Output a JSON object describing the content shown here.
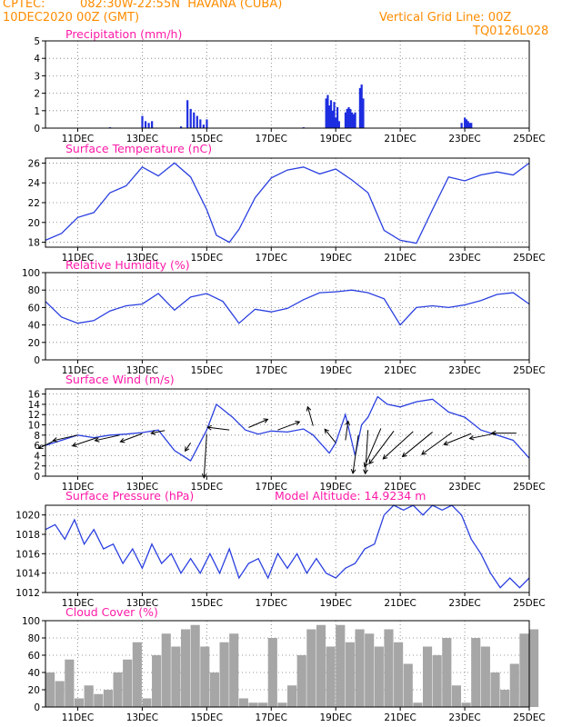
{
  "header": {
    "source": "CPTEC:",
    "location": "082:30W-22:55N  HAVANA (CUBA)",
    "start": "10DEC2020 00Z (GMT)",
    "grid_note": "Vertical Grid Line: 00Z",
    "code": "TQ0126L028"
  },
  "colors": {
    "header": "#ff8c00",
    "title": "#ff1aa8",
    "line": "#2a3fe0",
    "bar": "#1d2de0",
    "cloud": "#a6a6a6",
    "axis": "#000000",
    "grid": "#777777"
  },
  "x_axis": {
    "unit": "day",
    "range": [
      10,
      25
    ],
    "ticks": [
      11,
      13,
      15,
      17,
      19,
      21,
      23,
      25
    ],
    "tick_labels": [
      "11DEC",
      "13DEC",
      "15DEC",
      "17DEC",
      "19DEC",
      "21DEC",
      "23DEC",
      "25DEC"
    ]
  },
  "chart_data": [
    {
      "type": "bar",
      "title": "Precipitation (mm/h)",
      "ylim": [
        0,
        5
      ],
      "yticks": [
        0,
        1,
        2,
        3,
        4,
        5
      ],
      "x": [
        12.0,
        13.0,
        13.1,
        13.2,
        13.3,
        14.2,
        14.4,
        14.5,
        14.6,
        14.7,
        14.8,
        14.9,
        15.0,
        18.0,
        18.7,
        18.75,
        18.8,
        18.85,
        18.9,
        18.95,
        19.0,
        19.05,
        19.1,
        19.3,
        19.35,
        19.4,
        19.45,
        19.5,
        19.55,
        19.6,
        19.75,
        19.8,
        19.85,
        22.9,
        23.0,
        23.05,
        23.1,
        23.15,
        23.2
      ],
      "values": [
        0.05,
        0.7,
        0.4,
        0.3,
        0.4,
        0.1,
        1.6,
        1.1,
        0.9,
        0.7,
        0.5,
        0.2,
        0.5,
        0.05,
        1.7,
        1.9,
        1.3,
        1.6,
        1.0,
        1.5,
        0.6,
        1.2,
        0.4,
        0.9,
        1.1,
        1.2,
        1.1,
        0.9,
        0.8,
        0.9,
        2.3,
        2.5,
        1.7,
        0.3,
        0.6,
        0.5,
        0.4,
        0.3,
        0.3
      ]
    },
    {
      "type": "line",
      "title": "Surface Temperature (nC)",
      "ylim": [
        17.5,
        26.5
      ],
      "yticks": [
        18,
        20,
        22,
        24,
        26
      ],
      "x": [
        10.0,
        10.5,
        11.0,
        11.5,
        12.0,
        12.5,
        13.0,
        13.5,
        14.0,
        14.5,
        15.0,
        15.3,
        15.7,
        16.0,
        16.5,
        17.0,
        17.5,
        18.0,
        18.5,
        19.0,
        19.5,
        20.0,
        20.5,
        21.0,
        21.5,
        22.0,
        22.5,
        23.0,
        23.5,
        24.0,
        24.5,
        25.0
      ],
      "values": [
        18.2,
        18.9,
        20.5,
        21.0,
        23.0,
        23.7,
        25.6,
        24.7,
        26.0,
        24.6,
        21.3,
        18.7,
        18.0,
        19.3,
        22.5,
        24.5,
        25.3,
        25.6,
        24.9,
        25.4,
        24.3,
        23.0,
        19.2,
        18.2,
        17.9,
        21.3,
        24.6,
        24.2,
        24.8,
        25.1,
        24.8,
        26.0
      ]
    },
    {
      "type": "line",
      "title": "Relative Humidity (%)",
      "ylim": [
        0,
        100
      ],
      "yticks": [
        0,
        20,
        40,
        60,
        80,
        100
      ],
      "x": [
        10.0,
        10.5,
        11.0,
        11.5,
        12.0,
        12.5,
        13.0,
        13.5,
        14.0,
        14.5,
        15.0,
        15.5,
        16.0,
        16.5,
        17.0,
        17.5,
        18.0,
        18.5,
        19.0,
        19.5,
        20.0,
        20.5,
        21.0,
        21.5,
        22.0,
        22.5,
        23.0,
        23.5,
        24.0,
        24.5,
        25.0
      ],
      "values": [
        67.0,
        49.0,
        42.0,
        45.0,
        56.0,
        62.0,
        64.0,
        76.0,
        57.0,
        72.0,
        76.0,
        67.0,
        42.0,
        58.0,
        55.0,
        59.0,
        69.0,
        77.0,
        78.0,
        80.0,
        77.0,
        70.0,
        40.0,
        60.0,
        62.0,
        60.0,
        63.0,
        68.0,
        75.0,
        77.0,
        64.0
      ]
    },
    {
      "type": "line",
      "title": "Surface Wind (m/s)",
      "ylim": [
        0,
        17
      ],
      "yticks": [
        0,
        2,
        4,
        6,
        8,
        10,
        12,
        14,
        16
      ],
      "x": [
        10.0,
        10.5,
        11.0,
        11.5,
        12.0,
        12.5,
        13.0,
        13.5,
        14.0,
        14.5,
        15.0,
        15.3,
        15.8,
        16.2,
        16.6,
        17.0,
        17.5,
        18.0,
        18.3,
        18.8,
        19.0,
        19.3,
        19.6,
        19.8,
        20.0,
        20.3,
        20.6,
        21.0,
        21.5,
        22.0,
        22.5,
        23.0,
        23.5,
        24.0,
        24.5,
        25.0
      ],
      "values": [
        6.0,
        7.0,
        8.0,
        7.5,
        8.0,
        8.2,
        8.5,
        9.0,
        5.0,
        3.0,
        9.0,
        14.0,
        11.5,
        9.0,
        8.2,
        8.8,
        8.6,
        9.2,
        8.0,
        4.5,
        6.5,
        12.0,
        4.0,
        10.0,
        11.5,
        15.5,
        14.0,
        13.5,
        14.5,
        15.0,
        12.5,
        11.5,
        9.0,
        8.0,
        7.0,
        3.5
      ],
      "arrows": [
        {
          "x": 10.3,
          "y": 7.0,
          "u": -0.6,
          "v": -0.3
        },
        {
          "x": 11.0,
          "y": 8.0,
          "u": -0.9,
          "v": -0.2
        },
        {
          "x": 11.6,
          "y": 7.5,
          "u": -0.9,
          "v": -0.3
        },
        {
          "x": 12.3,
          "y": 8.0,
          "u": -0.9,
          "v": -0.2
        },
        {
          "x": 13.0,
          "y": 8.3,
          "u": -0.8,
          "v": -0.3
        },
        {
          "x": 13.7,
          "y": 8.9,
          "u": -0.5,
          "v": -0.1
        },
        {
          "x": 14.5,
          "y": 6.5,
          "u": -0.2,
          "v": -0.3
        },
        {
          "x": 15.0,
          "y": 8.2,
          "u": -0.1,
          "v": -1.6
        },
        {
          "x": 15.7,
          "y": 9.0,
          "u": -0.8,
          "v": 0.1
        },
        {
          "x": 16.3,
          "y": 9.5,
          "u": 0.7,
          "v": 0.3
        },
        {
          "x": 17.2,
          "y": 9.0,
          "u": 0.8,
          "v": 0.3
        },
        {
          "x": 18.3,
          "y": 9.8,
          "u": -0.2,
          "v": 0.7
        },
        {
          "x": 19.0,
          "y": 6.5,
          "u": -0.4,
          "v": 0.5
        },
        {
          "x": 19.3,
          "y": 7.0,
          "u": 0.1,
          "v": 0.7
        },
        {
          "x": 19.7,
          "y": 8.0,
          "u": -0.2,
          "v": -1.4
        },
        {
          "x": 20.0,
          "y": 9.0,
          "u": -0.1,
          "v": -1.6
        },
        {
          "x": 20.4,
          "y": 9.3,
          "u": -0.6,
          "v": -1.4
        },
        {
          "x": 20.8,
          "y": 8.8,
          "u": -0.9,
          "v": -1.2
        },
        {
          "x": 21.4,
          "y": 8.7,
          "u": -1.1,
          "v": -1.0
        },
        {
          "x": 22.0,
          "y": 8.6,
          "u": -1.1,
          "v": -0.9
        },
        {
          "x": 22.6,
          "y": 8.5,
          "u": -1.1,
          "v": -0.8
        },
        {
          "x": 23.2,
          "y": 8.3,
          "u": -1.0,
          "v": -0.4
        },
        {
          "x": 24.0,
          "y": 8.4,
          "u": -1.0,
          "v": -0.2
        },
        {
          "x": 24.6,
          "y": 8.4,
          "u": -0.9,
          "v": 0.0
        }
      ]
    },
    {
      "type": "line",
      "title": "Surface Pressure (hPa)",
      "note": "Model Altitude: 14.9234 m",
      "ylim": [
        1012,
        1021
      ],
      "yticks": [
        1012,
        1014,
        1016,
        1018,
        1020
      ],
      "x": [
        10.0,
        10.3,
        10.6,
        10.9,
        11.2,
        11.5,
        11.8,
        12.1,
        12.4,
        12.7,
        13.0,
        13.3,
        13.6,
        13.9,
        14.2,
        14.5,
        14.8,
        15.1,
        15.4,
        15.7,
        16.0,
        16.3,
        16.6,
        16.9,
        17.2,
        17.5,
        17.8,
        18.1,
        18.4,
        18.7,
        19.0,
        19.3,
        19.6,
        19.9,
        20.2,
        20.5,
        20.8,
        21.1,
        21.4,
        21.7,
        22.0,
        22.3,
        22.6,
        22.9,
        23.2,
        23.5,
        23.8,
        24.1,
        24.4,
        24.7,
        25.0
      ],
      "values": [
        1018.5,
        1019.0,
        1017.5,
        1019.5,
        1017.0,
        1018.5,
        1016.5,
        1017.0,
        1015.0,
        1016.5,
        1014.5,
        1017.0,
        1015.0,
        1016.0,
        1014.0,
        1015.5,
        1014.0,
        1016.0,
        1014.0,
        1016.5,
        1013.5,
        1015.0,
        1015.5,
        1013.5,
        1016.0,
        1014.5,
        1016.0,
        1014.0,
        1015.5,
        1014.0,
        1013.5,
        1014.5,
        1015.0,
        1016.5,
        1017.0,
        1020.0,
        1021.0,
        1020.5,
        1021.0,
        1020.0,
        1021.0,
        1020.5,
        1021.0,
        1020.0,
        1017.5,
        1016.0,
        1014.0,
        1012.5,
        1013.5,
        1012.5,
        1013.5
      ]
    },
    {
      "type": "area",
      "title": "Cloud Cover (%)",
      "ylim": [
        0,
        100
      ],
      "yticks": [
        0,
        20,
        40,
        60,
        80,
        100
      ],
      "x": [
        10.0,
        10.3,
        10.6,
        10.9,
        11.2,
        11.5,
        11.8,
        12.1,
        12.4,
        12.7,
        13.0,
        13.3,
        13.6,
        13.9,
        14.2,
        14.5,
        14.8,
        15.1,
        15.4,
        15.7,
        16.0,
        16.3,
        16.6,
        16.9,
        17.2,
        17.5,
        17.8,
        18.1,
        18.4,
        18.7,
        19.0,
        19.3,
        19.6,
        19.9,
        20.2,
        20.5,
        20.8,
        21.1,
        21.4,
        21.7,
        22.0,
        22.3,
        22.6,
        22.9,
        23.2,
        23.5,
        23.8,
        24.1,
        24.4,
        24.7,
        25.0
      ],
      "values": [
        40,
        30,
        55,
        10,
        25,
        15,
        20,
        40,
        55,
        75,
        10,
        60,
        85,
        70,
        90,
        95,
        70,
        40,
        75,
        85,
        10,
        5,
        5,
        80,
        5,
        25,
        60,
        90,
        95,
        70,
        95,
        75,
        90,
        85,
        70,
        90,
        75,
        50,
        5,
        70,
        60,
        80,
        25,
        5,
        80,
        70,
        40,
        20,
        50,
        85,
        90
      ]
    }
  ]
}
